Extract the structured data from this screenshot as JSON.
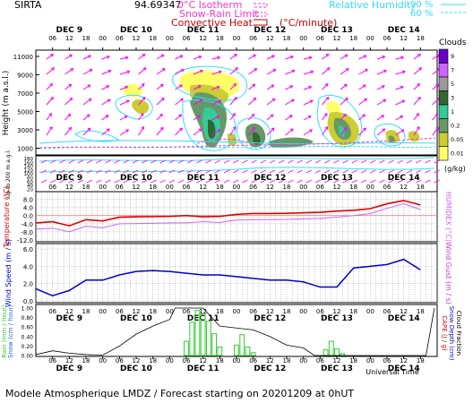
{
  "header": {
    "site": "SIRTA",
    "coords": "94.69347",
    "isotherm": "0°C Isotherm",
    "snow_rain": "Snow-Rain Limit",
    "convective": "Convective Heat.",
    "unit": "(°C/minute)",
    "rh": "Relative Humidity",
    "rh90": "90 %",
    "rh60": "60 %"
  },
  "colors": {
    "isotherm": "#ff33cc",
    "convective": "#cc0000",
    "rh": "#33ddff",
    "wind": "#ff00ff",
    "temperature": "#dd0000",
    "humidex": "#cc66ff",
    "wind_speed": "#0000cc",
    "rain": "#33cc33",
    "snow": "#000000"
  },
  "icons": {
    "wind_barb": "arrow-icon"
  },
  "time_axis": {
    "hours": [
      "06",
      "12",
      "18",
      "00",
      "06",
      "12",
      "18",
      "00",
      "06",
      "12",
      "18",
      "00",
      "06",
      "12",
      "18",
      "00",
      "06",
      "12",
      "18",
      "00",
      "06",
      "12",
      "18"
    ],
    "days": [
      "DEC 9",
      "DEC 10",
      "DEC 11",
      "DEC 12",
      "DEC 13",
      "DEC 14"
    ],
    "xlabel": "Universal Time"
  },
  "clouds": {
    "title": "Clouds",
    "unit": "(g/kg)",
    "levels": [
      "9",
      "7",
      "5",
      "3",
      "1",
      "0.2",
      "0.05",
      "0.01"
    ],
    "colors": [
      "#6600cc",
      "#cc66ff",
      "#999999",
      "#336633",
      "#33cc99",
      "#669966",
      "#cccc33",
      "#ffff66"
    ]
  },
  "upper_panel": {
    "ylabel": "Height (m a.s.l.)",
    "yticks": [
      "11000",
      "9000",
      "7000",
      "5000",
      "3000",
      "1000"
    ]
  },
  "lower_panel": {
    "ylabel": "Up to 200 m a.g.l.",
    "yticks": [
      "180",
      "160",
      "140",
      "120",
      "100",
      "80",
      "60",
      "40",
      "20"
    ]
  },
  "temp_panel": {
    "ylabel": "Temperature (°C)",
    "right_label": "HUMIDEX (°C)",
    "yticks": [
      "8.0",
      "4.0",
      "0.0",
      "-4.0",
      "-8.0",
      "-12.0"
    ]
  },
  "wind_panel": {
    "ylabel": "Wind Speed (m / s)",
    "right_label": "Wind Gust (m / s)",
    "yticks": [
      "6.0",
      "4.0",
      "2.0",
      "0.0"
    ]
  },
  "rain_panel": {
    "ylabel_rain": "Rain (mm / hour)",
    "ylabel_snow": "Snow (cm / hour)",
    "right_label_cape": "CAPE (J / g)",
    "right_label_snow": "Snow Depth (cm)",
    "right_label_cloud": "Cloud Fraction",
    "yticks": [
      "1.00",
      "0.80",
      "0.60",
      "0.40",
      "0.20",
      "0.00"
    ]
  },
  "footer": "Modele Atmospherique LMDZ / Forecast starting on 20201209 at 0hUT",
  "chart_data": [
    {
      "type": "line",
      "title": "Temperature (°C)",
      "ylim": [
        -12,
        10
      ],
      "x_hours": [
        0,
        6,
        12,
        18,
        24,
        30,
        36,
        42,
        48,
        54,
        60,
        66,
        72,
        78,
        84,
        90,
        96,
        102,
        108,
        114,
        120,
        126,
        132,
        138
      ],
      "series": [
        {
          "values": [
            -3.6,
            -3.0,
            -5.0,
            -2.0,
            -2.6,
            -0.8,
            -0.6,
            -0.5,
            -0.4,
            0.0,
            -0.6,
            -0.4,
            0.6,
            1.0,
            1.0,
            1.1,
            1.4,
            1.6,
            2.2,
            2.6,
            3.4,
            5.8,
            7.4,
            5.2
          ]
        },
        {
          "values": [
            -6.6,
            -6.2,
            -8.0,
            -5.2,
            -6.0,
            -4.0,
            -3.9,
            -3.8,
            -3.6,
            -3.6,
            -3.0,
            -3.4,
            -2.2,
            -2.0,
            -2.0,
            -1.9,
            -1.6,
            -1.4,
            -0.8,
            0.0,
            1.0,
            3.6,
            5.8,
            3.0
          ]
        }
      ]
    },
    {
      "type": "line",
      "title": "Wind Speed (m / s)",
      "ylim": [
        0,
        6
      ],
      "x_hours": [
        0,
        6,
        12,
        18,
        24,
        30,
        36,
        42,
        48,
        54,
        60,
        66,
        72,
        78,
        84,
        90,
        96,
        102,
        108,
        114,
        120,
        126,
        132,
        138
      ],
      "series": [
        {
          "values": [
            1.4,
            0.6,
            1.2,
            2.4,
            2.4,
            3.0,
            3.4,
            3.5,
            3.4,
            3.2,
            3.0,
            3.0,
            2.8,
            2.6,
            2.4,
            2.4,
            2.2,
            1.6,
            1.6,
            3.8,
            4.0,
            4.2,
            4.8,
            3.6
          ]
        }
      ]
    },
    {
      "type": "bar",
      "title": "Rain (mm / hour)",
      "ylim": [
        0,
        1.0
      ],
      "x_hours": [
        54,
        56,
        58,
        60,
        62,
        64,
        66,
        72,
        74,
        76,
        78,
        104,
        106,
        108,
        110
      ],
      "series": [
        {
          "values": [
            0.3,
            0.7,
            0.95,
            0.88,
            0.72,
            0.46,
            0.18,
            0.22,
            0.44,
            0.18,
            0.06,
            0.12,
            0.3,
            0.14,
            0.04
          ]
        }
      ]
    },
    {
      "type": "line",
      "title": "Snow (cm / hour)",
      "ylim": [
        0,
        1.0
      ],
      "x_hours": [
        0,
        6,
        12,
        18,
        24,
        30,
        36,
        42,
        48,
        50,
        60,
        66,
        78,
        84,
        90,
        96,
        100,
        120,
        126,
        132,
        138,
        140,
        143
      ],
      "series": [
        {
          "values": [
            0.02,
            0.1,
            0.05,
            0.02,
            0.01,
            0.2,
            0.45,
            0.62,
            0.76,
            1.0,
            1.0,
            0.62,
            0.54,
            0.4,
            0.22,
            0.16,
            0.0,
            0.0,
            0.0,
            0.0,
            0.0,
            0.0,
            1.0
          ]
        }
      ]
    }
  ]
}
